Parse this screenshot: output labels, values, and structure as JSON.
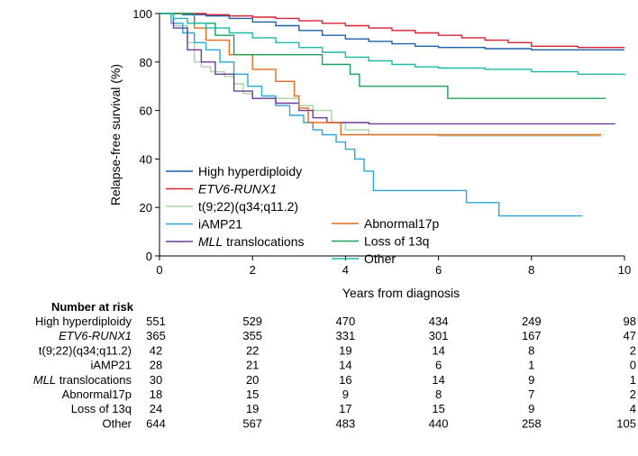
{
  "chart_data": {
    "type": "line",
    "xlabel": "Years from diagnosis",
    "ylabel": "Relapse-free survival (%)",
    "xlim": [
      0,
      10
    ],
    "ylim": [
      0,
      100
    ],
    "x_ticks": [
      0,
      2,
      4,
      6,
      8,
      10
    ],
    "y_ticks": [
      0,
      20,
      40,
      60,
      80,
      100
    ],
    "grid": false,
    "legend_position": "bottom-left",
    "series": [
      {
        "name": "High hyperdiploidy",
        "italic": false,
        "color": "#1f5fa8",
        "points": [
          [
            0,
            100
          ],
          [
            0.5,
            99.5
          ],
          [
            1,
            99
          ],
          [
            1.5,
            98
          ],
          [
            2,
            96.5
          ],
          [
            2.5,
            95
          ],
          [
            3,
            93
          ],
          [
            3.5,
            91
          ],
          [
            4,
            89.5
          ],
          [
            4.5,
            88.5
          ],
          [
            5,
            87.5
          ],
          [
            5.5,
            86.5
          ],
          [
            6,
            86
          ],
          [
            7,
            85.5
          ],
          [
            8,
            85
          ],
          [
            9,
            85
          ],
          [
            10,
            85
          ]
        ]
      },
      {
        "name": "ETV6-RUNX1",
        "italic": true,
        "color": "#d62232",
        "points": [
          [
            0,
            100
          ],
          [
            0.5,
            100
          ],
          [
            1,
            99.5
          ],
          [
            1.5,
            99
          ],
          [
            2,
            98.5
          ],
          [
            2.5,
            98
          ],
          [
            3,
            97
          ],
          [
            3.5,
            96
          ],
          [
            4,
            95
          ],
          [
            4.5,
            94
          ],
          [
            5,
            93
          ],
          [
            5.5,
            92
          ],
          [
            6,
            91
          ],
          [
            6.5,
            90
          ],
          [
            7,
            89
          ],
          [
            7.5,
            88
          ],
          [
            8,
            86.5
          ],
          [
            9,
            86
          ],
          [
            10,
            86
          ]
        ]
      },
      {
        "name": "t(9;22)(q34;q11.2)",
        "italic": false,
        "color": "#a8d5a2",
        "points": [
          [
            0,
            100
          ],
          [
            0.3,
            95
          ],
          [
            0.6,
            88
          ],
          [
            0.75,
            80
          ],
          [
            0.9,
            78
          ],
          [
            1.1,
            76
          ],
          [
            1.4,
            74
          ],
          [
            1.6,
            71
          ],
          [
            1.8,
            67
          ],
          [
            2,
            65
          ],
          [
            2.5,
            65
          ],
          [
            3,
            62
          ],
          [
            3.3,
            60
          ],
          [
            3.7,
            55
          ],
          [
            4,
            52
          ],
          [
            4.5,
            50
          ],
          [
            5,
            50
          ],
          [
            6,
            49.5
          ],
          [
            7,
            49.5
          ],
          [
            9.5,
            49.5
          ]
        ]
      },
      {
        "name": "iAMP21",
        "italic": false,
        "color": "#2aa6d6",
        "points": [
          [
            0,
            100
          ],
          [
            0.25,
            96
          ],
          [
            0.5,
            92
          ],
          [
            0.75,
            88
          ],
          [
            1,
            85
          ],
          [
            1.3,
            80
          ],
          [
            1.6,
            75
          ],
          [
            1.9,
            70
          ],
          [
            2.2,
            66
          ],
          [
            2.5,
            62
          ],
          [
            2.8,
            58
          ],
          [
            3.1,
            55
          ],
          [
            3.3,
            52
          ],
          [
            3.5,
            50
          ],
          [
            3.8,
            47
          ],
          [
            4,
            44
          ],
          [
            4.2,
            40
          ],
          [
            4.4,
            35
          ],
          [
            4.6,
            27
          ],
          [
            5,
            27
          ],
          [
            6.5,
            27
          ],
          [
            6.6,
            22
          ],
          [
            7.2,
            22
          ],
          [
            7.3,
            16.5
          ],
          [
            9.1,
            16.5
          ]
        ]
      },
      {
        "name": "MLL translocations",
        "italic": true,
        "color": "#6a3d9a",
        "points": [
          [
            0,
            100
          ],
          [
            0.3,
            94
          ],
          [
            0.6,
            85
          ],
          [
            0.9,
            80
          ],
          [
            1.2,
            75
          ],
          [
            1.6,
            68
          ],
          [
            2,
            65
          ],
          [
            2.5,
            63
          ],
          [
            3,
            60
          ],
          [
            3.3,
            57
          ],
          [
            3.6,
            55
          ],
          [
            4,
            55
          ],
          [
            4.5,
            54.5
          ],
          [
            6,
            54.5
          ],
          [
            8,
            54.5
          ],
          [
            9.8,
            54.5
          ]
        ]
      },
      {
        "name": "Abnormal17p",
        "italic": false,
        "color": "#e06a1f",
        "points": [
          [
            0,
            100
          ],
          [
            0.6,
            100
          ],
          [
            0.75,
            94
          ],
          [
            1,
            89
          ],
          [
            1.5,
            83
          ],
          [
            2,
            77
          ],
          [
            2.5,
            72
          ],
          [
            2.9,
            66
          ],
          [
            3,
            61
          ],
          [
            3.2,
            55
          ],
          [
            3.7,
            55
          ],
          [
            3.9,
            50
          ],
          [
            5,
            50
          ],
          [
            7,
            50
          ],
          [
            9.5,
            50
          ]
        ]
      },
      {
        "name": "Loss of 13q",
        "italic": false,
        "color": "#1aa05c",
        "points": [
          [
            0,
            100
          ],
          [
            0.6,
            100
          ],
          [
            0.75,
            96
          ],
          [
            1.2,
            91
          ],
          [
            1.6,
            83
          ],
          [
            3.4,
            83
          ],
          [
            3.5,
            79
          ],
          [
            4.1,
            75
          ],
          [
            4.3,
            70
          ],
          [
            6.1,
            70
          ],
          [
            6.2,
            65
          ],
          [
            9.6,
            65
          ]
        ]
      },
      {
        "name": "Other",
        "italic": false,
        "color": "#1eb8a6",
        "points": [
          [
            0,
            100
          ],
          [
            0.3,
            98
          ],
          [
            0.6,
            96
          ],
          [
            1,
            94
          ],
          [
            1.5,
            92
          ],
          [
            2,
            90
          ],
          [
            2.5,
            88
          ],
          [
            3,
            86
          ],
          [
            3.5,
            84
          ],
          [
            4,
            82
          ],
          [
            4.5,
            80.5
          ],
          [
            5,
            79
          ],
          [
            5.5,
            78
          ],
          [
            6,
            77.5
          ],
          [
            7,
            77
          ],
          [
            8,
            76
          ],
          [
            9,
            75
          ],
          [
            10,
            74.5
          ]
        ]
      }
    ],
    "risk_table": {
      "title": "Number at risk",
      "timepoints": [
        0,
        2,
        4,
        6,
        8,
        10
      ],
      "rows": [
        {
          "label": "High hyperdiploidy",
          "italic": false,
          "values": [
            "551",
            "529",
            "470",
            "434",
            "249",
            "98"
          ]
        },
        {
          "label": "ETV6-RUNX1",
          "italic": true,
          "values": [
            "365",
            "355",
            "331",
            "301",
            "167",
            "47"
          ]
        },
        {
          "label": "t(9;22)(q34;q11.2)",
          "italic": false,
          "values": [
            "42",
            "22",
            "19",
            "14",
            "8",
            "2"
          ]
        },
        {
          "label": "iAMP21",
          "italic": false,
          "values": [
            "28",
            "21",
            "14",
            "6",
            "1",
            "0"
          ]
        },
        {
          "label": "translocations",
          "prefix_italic": "MLL",
          "italic": false,
          "values": [
            "30",
            "20",
            "16",
            "14",
            "9",
            "1"
          ]
        },
        {
          "label": "Abnormal17p",
          "italic": false,
          "values": [
            "18",
            "15",
            "9",
            "8",
            "7",
            "2"
          ]
        },
        {
          "label": "Loss of 13q",
          "italic": false,
          "values": [
            "24",
            "19",
            "17",
            "15",
            "9",
            "4"
          ]
        },
        {
          "label": "Other",
          "italic": false,
          "values": [
            "644",
            "567",
            "483",
            "440",
            "258",
            "105"
          ]
        }
      ]
    },
    "legend_layout": {
      "left_column": [
        "High hyperdiploidy",
        "ETV6-RUNX1",
        "t(9;22)(q34;q11.2)",
        "iAMP21",
        "MLL translocations"
      ],
      "right_column": [
        "Abnormal17p",
        "Loss of 13q",
        "Other"
      ]
    }
  }
}
